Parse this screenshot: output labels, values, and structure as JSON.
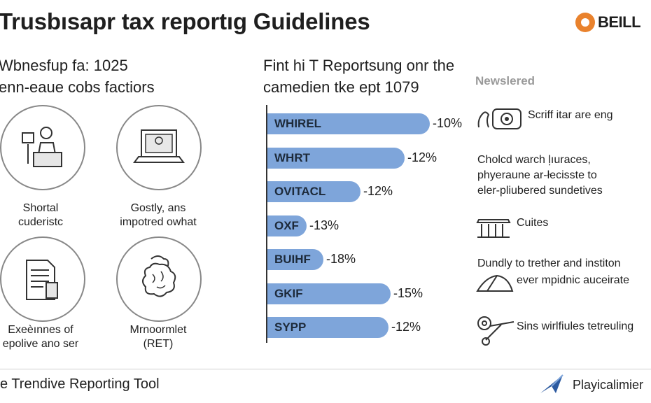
{
  "title": "Trusbısapr tax reportıg Guidelines",
  "brand": {
    "name": "BEILL",
    "accent": "#e9822d"
  },
  "left": {
    "heading_line1": "Wbnesfup fa: 1025",
    "heading_line2": "enn-eaue cobs factiors",
    "items": [
      {
        "line1": "Shortal",
        "line2": "cuderistc",
        "icon": "person-desk-icon"
      },
      {
        "line1": "Gostly, ans",
        "line2": "impotred owhat",
        "icon": "laptop-icon"
      },
      {
        "line1": "Exeèınnes of",
        "line2": "epolive ano ser",
        "icon": "document-icon"
      },
      {
        "line1": "Mrnoormlet",
        "line2": "(RET)",
        "icon": "brain-icon"
      }
    ]
  },
  "chart_data": {
    "type": "bar",
    "orientation": "horizontal",
    "title_line1": "Fint hi T Reportsung onr the",
    "title_line2": "camedien tke ept 1079",
    "categories": [
      "WHIREL",
      "WHRT",
      "OVITACL",
      "OXF",
      "BUIHF",
      "GKIF",
      "SYPP"
    ],
    "values": [
      -10,
      -12,
      -12,
      -13,
      -18,
      -15,
      -12
    ],
    "labels": [
      "-10%",
      "-12%",
      "-12%",
      "-13%",
      "-18%",
      "-15%",
      "-12%"
    ],
    "bar_fraction": [
      1.0,
      0.845,
      0.575,
      0.24,
      0.345,
      0.76,
      0.745
    ],
    "color": "#7ea5da",
    "grid": false
  },
  "right": {
    "newsletter": "Newslered",
    "items": [
      {
        "lines": [
          "Scriff itar are eng"
        ],
        "icon": "hand-camera-icon"
      },
      {
        "lines": [
          "Cholcd warch ļıuraces,",
          "phyeraune ar-łecisste to",
          "eler-pliubered sundetives"
        ],
        "icon": ""
      },
      {
        "lines": [
          "Cuites"
        ],
        "icon": "building-columns-icon"
      },
      {
        "lines": [
          "Dundly to trether and institon",
          "ever mpidnic auceirate"
        ],
        "icon": "tent-icon"
      },
      {
        "lines": [
          "Sins wirlfiules tetreuling"
        ],
        "icon": "wrench-gear-icon"
      }
    ]
  },
  "footer": {
    "left": "Je Trendive Reporting Tool",
    "right": "Playicalimier"
  }
}
